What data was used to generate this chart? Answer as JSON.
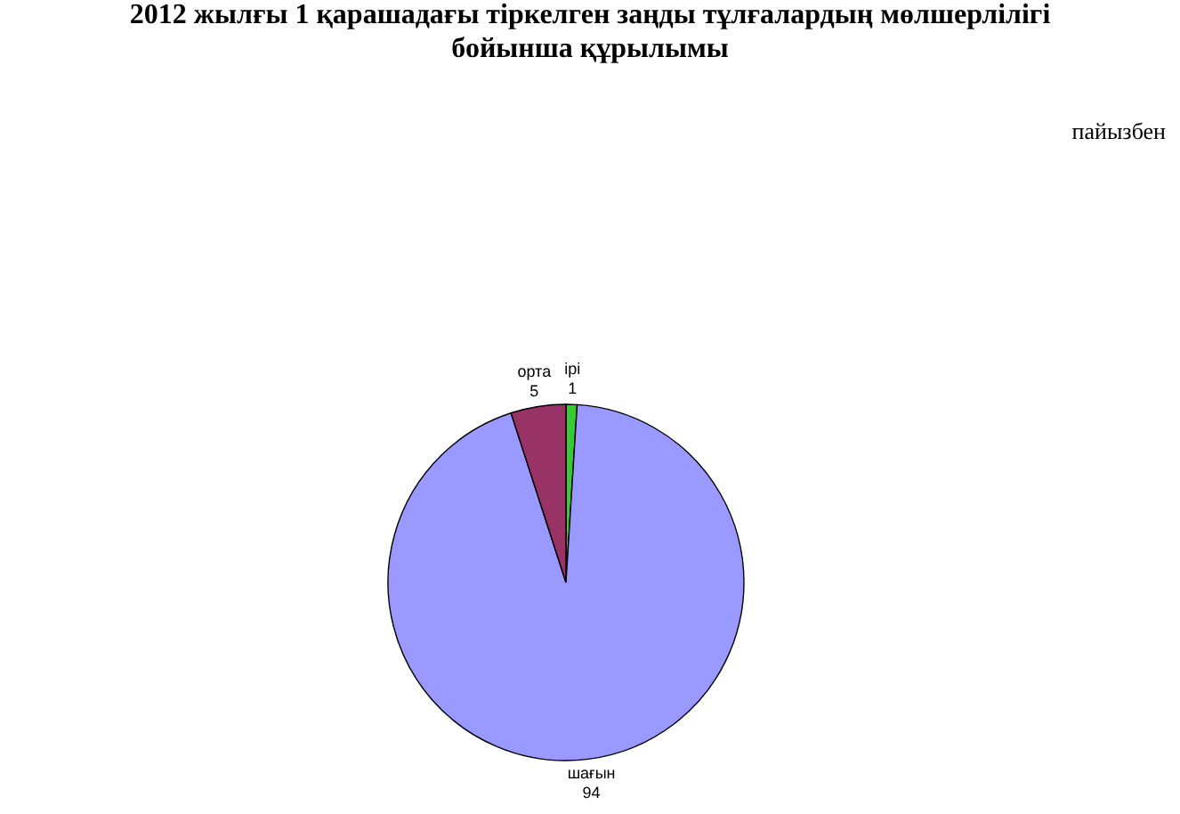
{
  "chart_data": {
    "type": "pie",
    "title": "2012 жылғы 1 қарашадағы  тіркелген заңды тұлғалардың мөлшерлілігі бойынша құрылымы",
    "annotations": [
      "пайызбен"
    ],
    "categories": [
      "ірі",
      "шағын",
      "орта"
    ],
    "values": [
      1,
      94,
      5
    ],
    "colors": [
      "#33cc33",
      "#9999ff",
      "#993366"
    ],
    "data_labels": true,
    "legend": false
  }
}
